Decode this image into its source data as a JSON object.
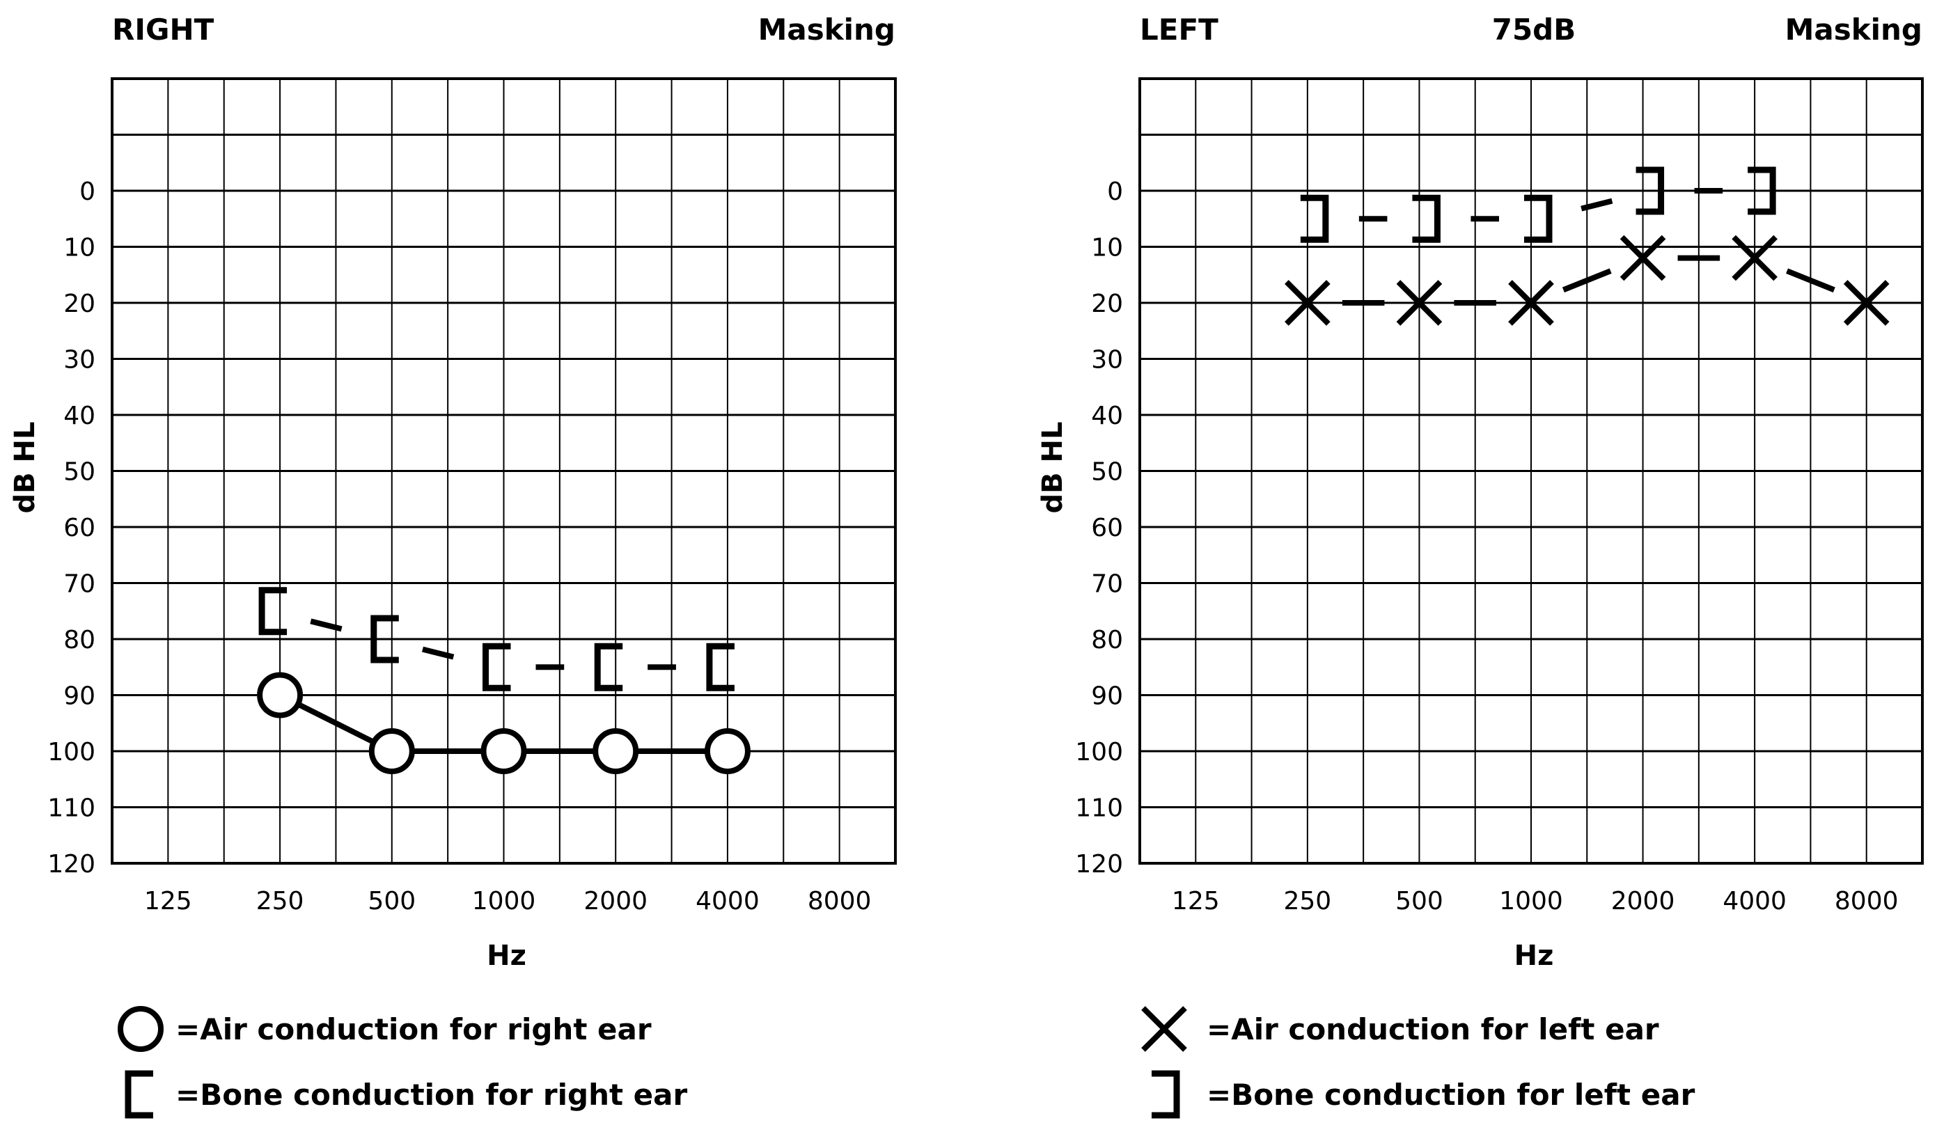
{
  "legend": [
    {
      "text": "=Air conduction for right ear",
      "symbol": "circle"
    },
    {
      "text": "=Bone conduction for right ear",
      "symbol": "bracket-right-ear"
    },
    {
      "text": "=Air conduction for left ear",
      "symbol": "x-mark"
    },
    {
      "text": "=Bone conduction for left ear",
      "symbol": "bracket-left-ear"
    }
  ],
  "chart_data": [
    {
      "type": "line",
      "header_left": "RIGHT",
      "header_center": "",
      "header_right": "Masking",
      "xlabel": "Hz",
      "ylabel": "dB HL",
      "x_ticks": [
        "125",
        "250",
        "500",
        "1000",
        "2000",
        "4000",
        "8000"
      ],
      "y_ticks": [
        0,
        10,
        20,
        30,
        40,
        50,
        60,
        70,
        80,
        90,
        100,
        110,
        120
      ],
      "ylim": [
        -20,
        120
      ],
      "y_inverted": true,
      "grid": true,
      "series": [
        {
          "marker": "circle",
          "line": "solid",
          "x": [
            "250",
            "500",
            "1000",
            "2000",
            "4000"
          ],
          "values": [
            90,
            100,
            100,
            100,
            100
          ]
        },
        {
          "marker": "bracket-right-ear",
          "line": "dashed",
          "x": [
            "250",
            "500",
            "1000",
            "2000",
            "4000"
          ],
          "values": [
            75,
            80,
            85,
            85,
            85
          ]
        }
      ]
    },
    {
      "type": "line",
      "header_left": "LEFT",
      "header_center": "75dB",
      "header_right": "Masking",
      "xlabel": "Hz",
      "ylabel": "dB HL",
      "x_ticks": [
        "125",
        "250",
        "500",
        "1000",
        "2000",
        "4000",
        "8000"
      ],
      "y_ticks": [
        0,
        10,
        20,
        30,
        40,
        50,
        60,
        70,
        80,
        90,
        100,
        110,
        120
      ],
      "ylim": [
        -20,
        120
      ],
      "y_inverted": true,
      "grid": true,
      "series": [
        {
          "marker": "x-mark",
          "line": "dashed",
          "x": [
            "250",
            "500",
            "1000",
            "2000",
            "4000",
            "8000"
          ],
          "values": [
            20,
            20,
            20,
            12,
            12,
            20
          ]
        },
        {
          "marker": "bracket-left-ear",
          "line": "dashed",
          "x": [
            "250",
            "500",
            "1000",
            "2000",
            "4000"
          ],
          "values": [
            5,
            5,
            5,
            0,
            0
          ]
        }
      ]
    }
  ]
}
